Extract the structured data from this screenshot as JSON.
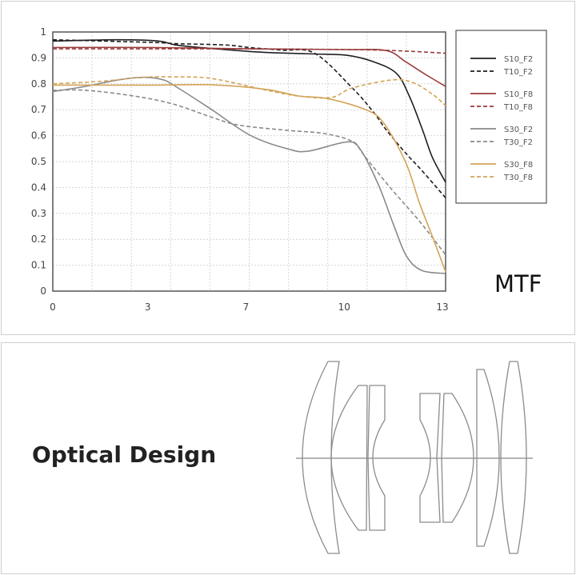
{
  "chart_data": {
    "type": "line",
    "title": "MTF",
    "xlabel": "",
    "ylabel": "",
    "xticks": [
      0,
      3,
      7,
      10,
      13
    ],
    "yticks": [
      0,
      0.1,
      0.2,
      0.3,
      0.4,
      0.5,
      0.6,
      0.7,
      0.8,
      0.9,
      1
    ],
    "ytick_labels": [
      "0",
      "0.1",
      "0.2",
      "0.3",
      "0.4",
      "0.5",
      "0.6",
      "0.7",
      "0.8",
      "0.9",
      "1"
    ],
    "xlim": [
      0,
      13
    ],
    "ylim": [
      0,
      1
    ],
    "grid": true,
    "legend_placement": "right",
    "series": [
      {
        "name": "S10_F2",
        "color": "#1e1e1e",
        "dash": false,
        "x": [
          0,
          2,
          3.3,
          4,
          5,
          7,
          7.7,
          9,
          10,
          10.8,
          11.5,
          11.9,
          12.3,
          12.6,
          13
        ],
        "y": [
          0.965,
          0.97,
          0.965,
          0.95,
          0.94,
          0.925,
          0.92,
          0.915,
          0.91,
          0.885,
          0.84,
          0.75,
          0.62,
          0.515,
          0.42
        ]
      },
      {
        "name": "T10_F2",
        "color": "#1e1e1e",
        "dash": true,
        "x": [
          0,
          3,
          4,
          6,
          7,
          8,
          9,
          10.15,
          10.8,
          11.2,
          11.8,
          12.27,
          13
        ],
        "y": [
          0.97,
          0.96,
          0.955,
          0.95,
          0.94,
          0.93,
          0.918,
          0.784,
          0.69,
          0.62,
          0.53,
          0.466,
          0.36
        ]
      },
      {
        "name": "S10_F8",
        "color": "#9a3b3b",
        "dash": false,
        "x": [
          0,
          3,
          7,
          10,
          11.2,
          11.78,
          12.4,
          13
        ],
        "y": [
          0.94,
          0.94,
          0.935,
          0.932,
          0.928,
          0.885,
          0.835,
          0.79
        ]
      },
      {
        "name": "T10_F8",
        "color": "#9a3b3b",
        "dash": true,
        "x": [
          0,
          3,
          7,
          10,
          11,
          12,
          13
        ],
        "y": [
          0.935,
          0.935,
          0.935,
          0.932,
          0.93,
          0.925,
          0.918
        ]
      },
      {
        "name": "S30_F2",
        "color": "#8a8a8a",
        "dash": false,
        "x": [
          0,
          1,
          2,
          2.8,
          3.5,
          4,
          5.4,
          7.05,
          8.2,
          8.8,
          10,
          10.4,
          10.95,
          11.4,
          11.8,
          12.27,
          13
        ],
        "y": [
          0.77,
          0.79,
          0.815,
          0.825,
          0.815,
          0.79,
          0.705,
          0.6,
          0.548,
          0.54,
          0.576,
          0.546,
          0.41,
          0.26,
          0.136,
          0.08,
          0.068
        ]
      },
      {
        "name": "T30_F2",
        "color": "#8a8a8a",
        "dash": true,
        "x": [
          0,
          1,
          2.47,
          3.9,
          5.5,
          6.6,
          8.2,
          9.3,
          10.15,
          10.56,
          11.37,
          12.2,
          13
        ],
        "y": [
          0.775,
          0.775,
          0.753,
          0.722,
          0.67,
          0.64,
          0.62,
          0.608,
          0.577,
          0.515,
          0.39,
          0.27,
          0.14
        ]
      },
      {
        "name": "S30_F8",
        "color": "#d3a458",
        "dash": false,
        "x": [
          0,
          3,
          5.5,
          7.54,
          8.5,
          9.4,
          10.56,
          11.1,
          11.78,
          12.2,
          12.6,
          13
        ],
        "y": [
          0.795,
          0.795,
          0.796,
          0.778,
          0.753,
          0.743,
          0.7,
          0.65,
          0.497,
          0.34,
          0.21,
          0.074
        ]
      },
      {
        "name": "T30_F8",
        "color": "#d3a458",
        "dash": true,
        "x": [
          0,
          1.5,
          2.7,
          4,
          5.5,
          7.54,
          8.5,
          9.5,
          10.15,
          11.37,
          12,
          12.6,
          13
        ],
        "y": [
          0.8,
          0.81,
          0.825,
          0.827,
          0.82,
          0.775,
          0.753,
          0.747,
          0.784,
          0.815,
          0.805,
          0.76,
          0.716
        ]
      }
    ]
  },
  "optical_design": {
    "title": "Optical Design",
    "color": "#8c8c8c"
  }
}
